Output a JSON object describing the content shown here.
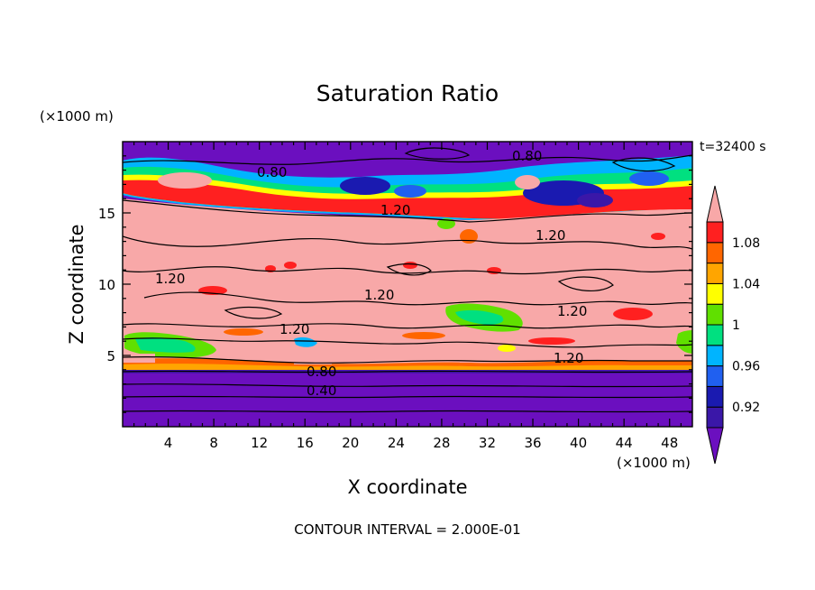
{
  "chart_data": {
    "type": "heatmap",
    "title": "Saturation Ratio",
    "xlabel": "X coordinate",
    "ylabel": "Z coordinate",
    "x_unit": "(×1000 m)",
    "y_unit": "(×1000 m)",
    "time_label": "t=32400 s",
    "footer": "CONTOUR INTERVAL = 2.000E-01",
    "xlim": [
      0,
      50
    ],
    "ylim": [
      0,
      20
    ],
    "x_ticks": [
      4,
      8,
      12,
      16,
      20,
      24,
      28,
      32,
      36,
      40,
      44,
      48
    ],
    "y_ticks": [
      5,
      10,
      15
    ],
    "colorbar": {
      "levels": [
        0.9,
        0.92,
        0.94,
        0.96,
        0.98,
        1.0,
        1.02,
        1.04,
        1.06,
        1.08,
        1.1
      ],
      "labels": [
        "1.08",
        "1.04",
        "1",
        "0.96",
        "0.92"
      ],
      "label_values": [
        1.08,
        1.04,
        1.0,
        0.96,
        0.92
      ],
      "colors": [
        "#6b0fbf",
        "#3a17a8",
        "#1a1ab0",
        "#2060f0",
        "#00b4ff",
        "#00e080",
        "#60e000",
        "#ffff00",
        "#ffa500",
        "#ff6600",
        "#ff2020",
        "#f8a8a8"
      ]
    },
    "contour_labels": [
      "0.80",
      "0.80",
      "1.20",
      "1.20",
      "1.20",
      "1.20",
      "1.20",
      "1.20",
      "1.20",
      "0.80",
      "0.40"
    ]
  }
}
